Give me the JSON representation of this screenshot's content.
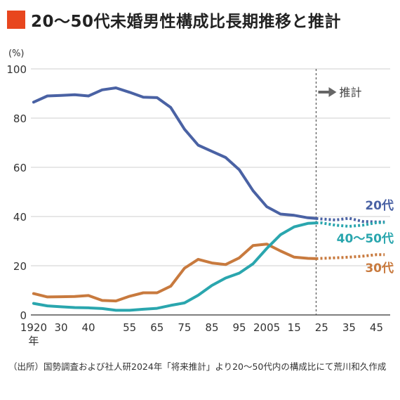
{
  "title": "20〜50代未婚男性構成比長期推移と推計",
  "source_note": "（出所）国勢調査および社人研2024年「将来推計」より20〜50代内の構成比にて荒川和久作成",
  "colors": {
    "accent": "#e8461e",
    "s20": "#4a62a4",
    "s30": "#c87a3e",
    "s4050": "#2aa6ae",
    "projection": "#666666"
  },
  "chart_data": {
    "type": "line",
    "ylabel": "(%)",
    "xlabel": "年",
    "ylim": [
      0,
      100
    ],
    "yticks": [
      0,
      20,
      40,
      60,
      80,
      100
    ],
    "xlim": [
      1919,
      2050
    ],
    "xticks": [
      {
        "x": 1920,
        "label": "1920"
      },
      {
        "x": 1930,
        "label": "30"
      },
      {
        "x": 1940,
        "label": "40"
      },
      {
        "x": 1955,
        "label": "55"
      },
      {
        "x": 1965,
        "label": "65"
      },
      {
        "x": 1975,
        "label": "75"
      },
      {
        "x": 1985,
        "label": "85"
      },
      {
        "x": 1995,
        "label": "95"
      },
      {
        "x": 2005,
        "label": "2005"
      },
      {
        "x": 2015,
        "label": "15"
      },
      {
        "x": 2025,
        "label": "25"
      },
      {
        "x": 2035,
        "label": "35"
      },
      {
        "x": 2045,
        "label": "45"
      }
    ],
    "grid": true,
    "projection_start": 2023,
    "projection_label": "推計",
    "series": [
      {
        "name": "20代",
        "color": "#4a62a4",
        "x": [
          1920,
          1925,
          1930,
          1935,
          1940,
          1945,
          1950,
          1955,
          1960,
          1965,
          1970,
          1975,
          1980,
          1985,
          1990,
          1995,
          2000,
          2005,
          2010,
          2015,
          2020,
          2023
        ],
        "values": [
          86.5,
          89,
          89.2,
          89.5,
          89,
          91.5,
          92.3,
          90.5,
          88.5,
          88.3,
          84.3,
          75.5,
          69,
          66.5,
          64,
          59,
          50.5,
          44,
          41,
          40.5,
          39.5,
          39.2
        ],
        "proj_x": [
          2023,
          2025,
          2030,
          2035,
          2040,
          2045,
          2048
        ],
        "proj_values": [
          39.2,
          39,
          38.6,
          39.3,
          38,
          37.8,
          37.8
        ]
      },
      {
        "name": "30代",
        "color": "#c87a3e",
        "x": [
          1920,
          1925,
          1930,
          1935,
          1940,
          1945,
          1950,
          1955,
          1960,
          1965,
          1970,
          1975,
          1980,
          1985,
          1990,
          1995,
          2000,
          2005,
          2010,
          2015,
          2020,
          2023
        ],
        "values": [
          8.7,
          7.3,
          7.4,
          7.5,
          7.9,
          5.9,
          5.7,
          7.6,
          9,
          9,
          11.7,
          19,
          22.6,
          21.1,
          20.5,
          23.2,
          28.2,
          28.8,
          26,
          23.5,
          23,
          22.9
        ],
        "proj_x": [
          2023,
          2025,
          2030,
          2035,
          2040,
          2045,
          2048
        ],
        "proj_values": [
          22.9,
          23,
          23.2,
          23.5,
          23.9,
          24.5,
          24.5
        ]
      },
      {
        "name": "40〜50代",
        "color": "#2aa6ae",
        "x": [
          1920,
          1925,
          1930,
          1935,
          1940,
          1945,
          1950,
          1955,
          1960,
          1965,
          1970,
          1975,
          1980,
          1985,
          1990,
          1995,
          2000,
          2005,
          2010,
          2015,
          2020,
          2023
        ],
        "values": [
          4.7,
          3.7,
          3.3,
          3,
          2.9,
          2.6,
          1.9,
          1.9,
          2.3,
          2.7,
          3.9,
          4.9,
          8,
          12,
          15,
          17,
          20.8,
          27,
          32.6,
          35.8,
          37.2,
          37.4
        ],
        "proj_x": [
          2023,
          2025,
          2030,
          2035,
          2040,
          2045,
          2048
        ],
        "proj_values": [
          37.4,
          37.4,
          36.5,
          36,
          36.5,
          37.5,
          37.6
        ]
      }
    ]
  }
}
